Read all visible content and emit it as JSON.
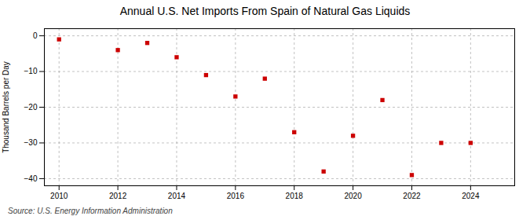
{
  "chart_data": {
    "type": "scatter",
    "title": "Annual U.S. Net Imports From Spain of Natural Gas Liquids",
    "ylabel": "Thousand Barrels per Day",
    "annotation": "Source: U.S. Energy Information Administration",
    "x": [
      2010,
      2012,
      2013,
      2014,
      2015,
      2016,
      2017,
      2018,
      2019,
      2020,
      2021,
      2022,
      2023,
      2024
    ],
    "values": [
      -1.0,
      -4.0,
      -2.0,
      -6.0,
      -11.0,
      -17.0,
      -12.0,
      -27.0,
      -38.0,
      -28.0,
      -18.0,
      -39.0,
      -30.0,
      -30.0
    ],
    "color": "#cc0000",
    "marker": "square",
    "xlim": [
      2009.5,
      2025.5
    ],
    "ylim": [
      -42,
      2
    ],
    "xticks": [
      2010,
      2012,
      2014,
      2016,
      2018,
      2020,
      2022,
      2024
    ],
    "yticks": [
      0,
      -10,
      -20,
      -30,
      -40
    ],
    "grid": true
  }
}
